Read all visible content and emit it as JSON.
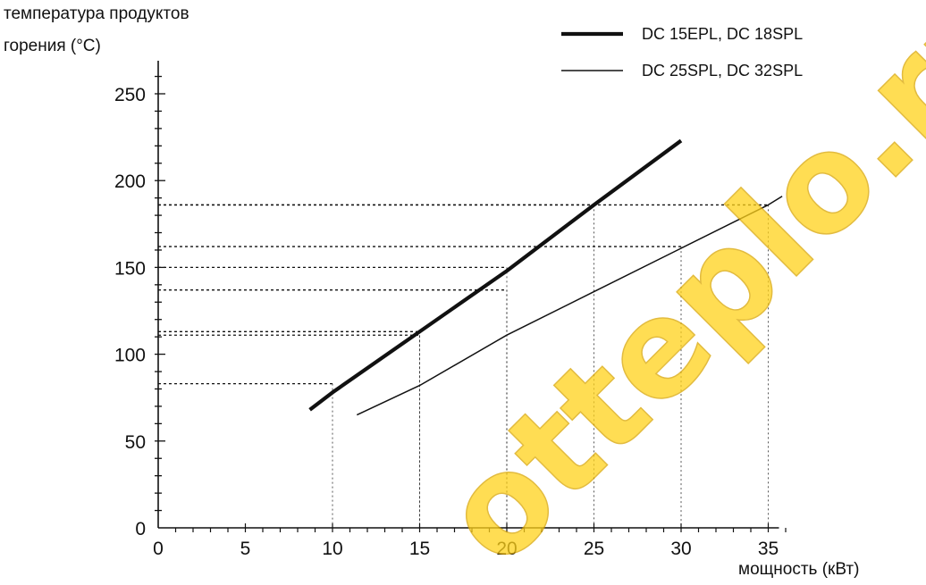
{
  "chart_data": {
    "type": "line",
    "ylabel": [
      "температура продуктов",
      "горения (°C)"
    ],
    "xlabel": "мощность (кВт)",
    "xlim": [
      0,
      35
    ],
    "ylim": [
      0,
      250
    ],
    "x_ticks": [
      0,
      5,
      10,
      15,
      20,
      25,
      30,
      35
    ],
    "y_ticks": [
      0,
      50,
      100,
      150,
      200,
      250
    ],
    "grid": false,
    "legend_position": "top-right",
    "series": [
      {
        "name": "DC 15EPL, DC 18SPL",
        "style": "thick",
        "points": [
          [
            8.7,
            68
          ],
          [
            10,
            78
          ],
          [
            15,
            113
          ],
          [
            20,
            148
          ],
          [
            25,
            186
          ],
          [
            30,
            223
          ]
        ]
      },
      {
        "name": "DC 25SPL, DC 32SPL",
        "style": "thin",
        "points": [
          [
            11.4,
            65
          ],
          [
            15,
            82
          ],
          [
            20,
            111
          ],
          [
            25,
            136
          ],
          [
            30,
            161
          ],
          [
            35,
            186
          ],
          [
            35.8,
            191
          ]
        ]
      }
    ],
    "reference_lines": [
      {
        "x": 10,
        "y": 83
      },
      {
        "x": 15,
        "y": 111
      },
      {
        "x": 15,
        "y": 113
      },
      {
        "x": 20,
        "y": 137
      },
      {
        "x": 20,
        "y": 150
      },
      {
        "x": 25,
        "y": 186
      },
      {
        "x": 30,
        "y": 162
      },
      {
        "x": 35,
        "y": 186
      }
    ]
  },
  "watermark": "otteplo.ru",
  "colors": {
    "line": "#111111",
    "watermark": "#ffd21a"
  }
}
